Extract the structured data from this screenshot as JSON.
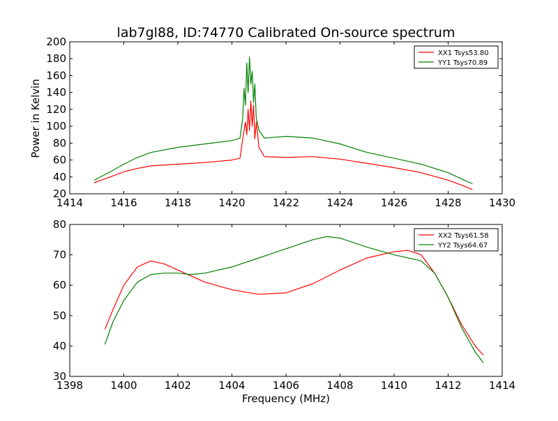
{
  "figure": {
    "title": "lab7gl88, ID:74770 Calibrated On-source spectrum",
    "xlabel": "Frequency (MHz)",
    "ylabel": "Power in Kelvin"
  },
  "chart_data": [
    {
      "type": "line",
      "title": "lab7gl88, ID:74770 Calibrated On-source spectrum",
      "xlabel": "",
      "ylabel": "Power in Kelvin",
      "xlim": [
        1414,
        1430
      ],
      "ylim": [
        20,
        200
      ],
      "xticks": [
        1414,
        1416,
        1418,
        1420,
        1422,
        1424,
        1426,
        1428,
        1430
      ],
      "yticks": [
        20,
        40,
        60,
        80,
        100,
        120,
        140,
        160,
        180,
        200
      ],
      "grid": false,
      "legend": "top-right",
      "series": [
        {
          "name": "XX1 Tsys53.80",
          "color": "#ff0000",
          "x": [
            1414.9,
            1415.5,
            1416,
            1416.5,
            1417,
            1418,
            1419,
            1420,
            1420.3,
            1420.4,
            1420.5,
            1420.55,
            1420.6,
            1420.65,
            1420.7,
            1420.75,
            1420.8,
            1420.85,
            1420.9,
            1421.0,
            1421.2,
            1422,
            1423,
            1424,
            1425,
            1426,
            1427,
            1428,
            1428.6,
            1428.9
          ],
          "y": [
            33,
            40,
            46,
            50,
            53,
            55,
            57,
            60,
            62,
            85,
            105,
            90,
            120,
            95,
            130,
            100,
            125,
            85,
            105,
            75,
            64,
            63,
            64,
            61,
            56,
            51,
            45,
            36,
            29,
            25
          ]
        },
        {
          "name": "YY1 Tsys70.89",
          "color": "#008000",
          "x": [
            1414.9,
            1415.5,
            1416,
            1416.5,
            1417,
            1418,
            1419,
            1420,
            1420.3,
            1420.4,
            1420.45,
            1420.5,
            1420.55,
            1420.6,
            1420.65,
            1420.7,
            1420.75,
            1420.8,
            1420.85,
            1420.9,
            1421.0,
            1421.2,
            1422,
            1423,
            1424,
            1425,
            1426,
            1427,
            1428,
            1428.6,
            1428.9
          ],
          "y": [
            36,
            46,
            55,
            63,
            69,
            75,
            79,
            83,
            86,
            110,
            145,
            125,
            175,
            140,
            182,
            150,
            165,
            128,
            150,
            110,
            95,
            86,
            88,
            86,
            79,
            69,
            62,
            55,
            45,
            36,
            32
          ]
        }
      ]
    },
    {
      "type": "line",
      "title": "",
      "xlabel": "Frequency (MHz)",
      "ylabel": "",
      "xlim": [
        1398,
        1414
      ],
      "ylim": [
        30,
        80
      ],
      "xticks": [
        1398,
        1400,
        1402,
        1404,
        1406,
        1408,
        1410,
        1412,
        1414
      ],
      "yticks": [
        30,
        40,
        50,
        60,
        70,
        80
      ],
      "grid": false,
      "legend": "top-right",
      "series": [
        {
          "name": "XX2 Tsys61.58",
          "color": "#ff0000",
          "x": [
            1399.3,
            1399.6,
            1400,
            1400.5,
            1401,
            1401.5,
            1402,
            1402.5,
            1403,
            1404,
            1405,
            1406,
            1407,
            1408,
            1409,
            1410,
            1410.5,
            1411,
            1411.5,
            1412,
            1412.5,
            1413,
            1413.3
          ],
          "y": [
            45.5,
            52,
            60,
            66,
            68,
            67,
            65,
            63,
            61,
            58.5,
            57,
            57.5,
            60.5,
            65,
            69,
            71,
            71.5,
            70,
            64,
            56,
            47,
            40,
            37
          ]
        },
        {
          "name": "YY2 Tsys64.67",
          "color": "#008000",
          "x": [
            1399.3,
            1399.6,
            1400,
            1400.5,
            1401,
            1401.5,
            1402,
            1402.5,
            1403,
            1404,
            1405,
            1406,
            1407,
            1407.5,
            1408,
            1409,
            1410,
            1411,
            1411.5,
            1412,
            1412.5,
            1413,
            1413.3
          ],
          "y": [
            40.5,
            48,
            55,
            61,
            63.5,
            64,
            64,
            63.5,
            64,
            66,
            69,
            72,
            75,
            76,
            75.5,
            72.5,
            70,
            68,
            64,
            56,
            46,
            38,
            34.5
          ]
        }
      ]
    }
  ]
}
